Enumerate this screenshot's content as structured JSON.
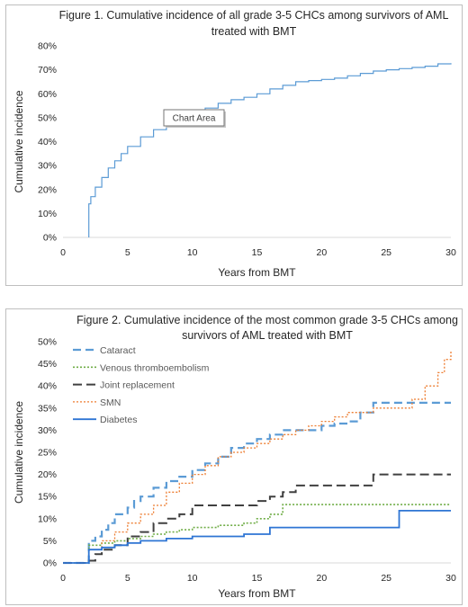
{
  "chart_data": [
    {
      "type": "line",
      "title_lines": [
        "Figure 1. Cumulative incidence of all grade 3-5 CHCs among survivors of AML",
        "treated with BMT"
      ],
      "xlabel": "Years from BMT",
      "ylabel": "Cumulative incidence",
      "xlim": [
        0,
        30
      ],
      "ylim": [
        0,
        0.8
      ],
      "xticks": [
        "0",
        "5",
        "10",
        "15",
        "20",
        "25",
        "30"
      ],
      "yticks": [
        "0%",
        "10%",
        "20%",
        "30%",
        "40%",
        "50%",
        "60%",
        "70%",
        "80%"
      ],
      "grid": false,
      "tooltip": "Chart Area",
      "series": [
        {
          "color": "#5b9bd5",
          "step": true,
          "x": [
            2.0,
            2.0,
            2.15,
            2.5,
            3.0,
            3.5,
            4.0,
            4.5,
            5.0,
            6.0,
            7.0,
            8.0,
            9.0,
            10.0,
            11.0,
            12.0,
            13.0,
            14.0,
            15.0,
            16.0,
            17.0,
            18.0,
            19.0,
            20.0,
            21.0,
            22.0,
            23.0,
            24.0,
            25.0,
            26.0,
            27.0,
            28.0,
            29.0,
            30.0
          ],
          "y": [
            0.0,
            0.14,
            0.17,
            0.21,
            0.25,
            0.29,
            0.32,
            0.35,
            0.38,
            0.42,
            0.45,
            0.48,
            0.5,
            0.52,
            0.54,
            0.56,
            0.575,
            0.585,
            0.6,
            0.62,
            0.635,
            0.65,
            0.655,
            0.66,
            0.665,
            0.675,
            0.685,
            0.695,
            0.7,
            0.705,
            0.71,
            0.715,
            0.725,
            0.728
          ]
        }
      ]
    },
    {
      "type": "line",
      "title_lines": [
        "Figure 2. Cumulative incidence of the most common grade 3-5 CHCs among",
        "survivors of AML treated with BMT"
      ],
      "xlabel": "Years from BMT",
      "ylabel": "Cumulative incidence",
      "xlim": [
        0,
        30
      ],
      "ylim": [
        0,
        0.5
      ],
      "xticks": [
        "0",
        "5",
        "10",
        "15",
        "20",
        "25",
        "30"
      ],
      "yticks": [
        "0%",
        "5%",
        "10%",
        "15%",
        "20%",
        "25%",
        "30%",
        "35%",
        "40%",
        "45%",
        "50%"
      ],
      "grid": false,
      "legend_position": "top-left",
      "series": [
        {
          "name": "Cataract",
          "color": "#5b9bd5",
          "dash": "9,5",
          "width": 2.2,
          "x": [
            0,
            2.0,
            2.0,
            2.5,
            3.0,
            3.5,
            4.0,
            5.0,
            5.5,
            6.0,
            7.0,
            8.0,
            9.0,
            10.0,
            11.0,
            12.0,
            13.0,
            14.0,
            15.0,
            16.0,
            17.0,
            18.0,
            19.0,
            20.0,
            21.0,
            22.0,
            23.0,
            24.0,
            26.0,
            27.0,
            30.0
          ],
          "y": [
            0,
            0,
            0.05,
            0.06,
            0.075,
            0.09,
            0.11,
            0.125,
            0.14,
            0.15,
            0.17,
            0.185,
            0.195,
            0.21,
            0.225,
            0.24,
            0.26,
            0.27,
            0.28,
            0.29,
            0.3,
            0.3,
            0.3,
            0.31,
            0.315,
            0.32,
            0.34,
            0.362,
            0.362,
            0.362,
            0.362
          ]
        },
        {
          "name": "Venous thromboembolism",
          "color": "#70ad47",
          "dash": "2,2",
          "width": 1.6,
          "x": [
            0,
            2.0,
            2.0,
            3.0,
            4.0,
            5.0,
            6.0,
            7.0,
            8.0,
            9.0,
            10.0,
            12.0,
            14.0,
            15.0,
            16.0,
            17.0,
            18.0,
            20.0,
            30.0
          ],
          "y": [
            0,
            0,
            0.04,
            0.045,
            0.05,
            0.055,
            0.06,
            0.065,
            0.07,
            0.075,
            0.08,
            0.085,
            0.09,
            0.1,
            0.11,
            0.132,
            0.132,
            0.132,
            0.132
          ]
        },
        {
          "name": "Joint replacement",
          "color": "#404040",
          "dash": "10,5",
          "width": 2.0,
          "x": [
            0,
            2.0,
            2.0,
            2.5,
            3.0,
            4.0,
            5.0,
            6.0,
            7.0,
            8.0,
            9.0,
            10.0,
            12.0,
            14.0,
            15.0,
            16.0,
            17.0,
            18.0,
            20.0,
            23.0,
            24.0,
            30.0
          ],
          "y": [
            0,
            0,
            0.005,
            0.02,
            0.03,
            0.04,
            0.06,
            0.07,
            0.09,
            0.1,
            0.11,
            0.13,
            0.13,
            0.13,
            0.14,
            0.15,
            0.16,
            0.175,
            0.175,
            0.175,
            0.2,
            0.2
          ]
        },
        {
          "name": "SMN",
          "color": "#ed7d31",
          "dash": "2,2",
          "width": 1.3,
          "x": [
            0,
            2.0,
            2.0,
            3.0,
            4.0,
            5.0,
            6.0,
            7.0,
            8.0,
            9.0,
            10.0,
            11.0,
            12.0,
            13.0,
            14.0,
            15.0,
            16.0,
            17.0,
            18.0,
            19.0,
            20.0,
            21.0,
            22.0,
            24.0,
            25.0,
            26.0,
            27.0,
            28.0,
            29.0,
            29.5,
            30.0
          ],
          "y": [
            0,
            0,
            0.03,
            0.05,
            0.07,
            0.09,
            0.11,
            0.13,
            0.16,
            0.18,
            0.2,
            0.22,
            0.24,
            0.25,
            0.26,
            0.27,
            0.28,
            0.29,
            0.3,
            0.31,
            0.32,
            0.33,
            0.34,
            0.35,
            0.35,
            0.35,
            0.37,
            0.4,
            0.43,
            0.46,
            0.48
          ]
        },
        {
          "name": "Diabetes",
          "color": "#2e75d4",
          "dash": "",
          "width": 1.8,
          "x": [
            0,
            2.0,
            2.0,
            3.0,
            4.0,
            5.0,
            6.0,
            8.0,
            10.0,
            11.0,
            14.0,
            15.0,
            16.0,
            20.0,
            25.0,
            26.0,
            30.0
          ],
          "y": [
            0,
            0,
            0.03,
            0.035,
            0.04,
            0.045,
            0.05,
            0.055,
            0.06,
            0.06,
            0.065,
            0.065,
            0.08,
            0.08,
            0.08,
            0.118,
            0.118
          ]
        }
      ]
    }
  ]
}
